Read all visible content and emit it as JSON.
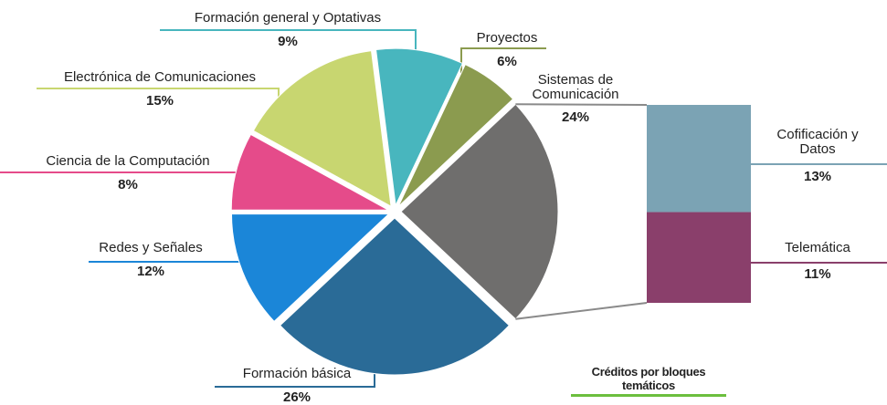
{
  "chart_data": {
    "type": "pie-of-bar",
    "title": "Créditos por bloques temáticos",
    "categories": [
      "Sistemas de Comunicación",
      "Formación básica",
      "Redes y Señales",
      "Ciencia de la Computación",
      "Electrónica de Comunicaciones",
      "Formación general y Optativas",
      "Proyectos"
    ],
    "values": [
      24,
      26,
      12,
      8,
      15,
      9,
      6
    ],
    "value_labels": [
      "24%",
      "26%",
      "12%",
      "8%",
      "15%",
      "9%",
      "6%"
    ],
    "colors": [
      "#6f6e6d",
      "#2a6b97",
      "#1b86d8",
      "#e54b8a",
      "#c8d670",
      "#48b6be",
      "#8b9b4f"
    ],
    "bar": {
      "categories": [
        "Cofificación y Datos",
        "Telemática"
      ],
      "values": [
        13,
        11
      ],
      "value_labels": [
        "13%",
        "11%"
      ],
      "colors": [
        "#7ba3b4",
        "#8a3f6b"
      ]
    }
  }
}
